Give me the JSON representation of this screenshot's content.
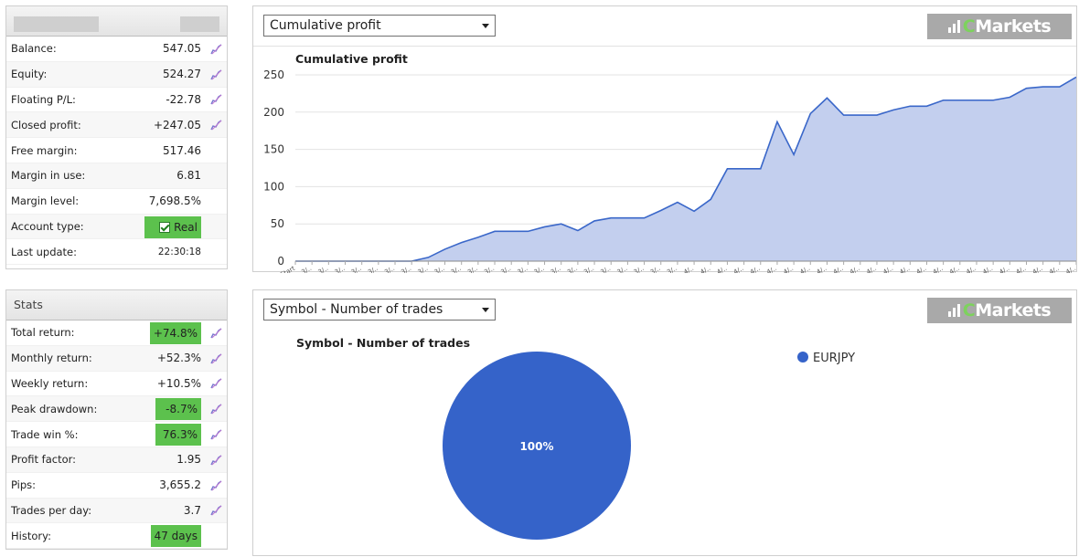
{
  "account": {
    "rows": [
      {
        "label": "Balance:",
        "value": "547.05",
        "icon": true
      },
      {
        "label": "Equity:",
        "value": "524.27",
        "icon": true
      },
      {
        "label": "Floating P/L:",
        "value": "-22.78",
        "icon": true
      },
      {
        "label": "Closed profit:",
        "value": "+247.05",
        "icon": true
      },
      {
        "label": "Free margin:",
        "value": "517.46",
        "icon": false
      },
      {
        "label": "Margin in use:",
        "value": "6.81",
        "icon": false
      },
      {
        "label": "Margin level:",
        "value": "7,698.5%",
        "icon": false
      },
      {
        "label": "Account type:",
        "value": "Real",
        "icon": false
      },
      {
        "label": "Last update:",
        "value": "22:30:18",
        "icon": false
      }
    ]
  },
  "stats": {
    "title": "Stats",
    "rows": [
      {
        "label": "Total return:",
        "value": "+74.8%",
        "highlight": true
      },
      {
        "label": "Monthly return:",
        "value": "+52.3%",
        "highlight": false
      },
      {
        "label": "Weekly return:",
        "value": "+10.5%",
        "highlight": false
      },
      {
        "label": "Peak drawdown:",
        "value": "-8.7%",
        "highlight": true
      },
      {
        "label": "Trade win %:",
        "value": "76.3%",
        "highlight": true
      },
      {
        "label": "Profit factor:",
        "value": "1.95",
        "highlight": false
      },
      {
        "label": "Pips:",
        "value": "3,655.2",
        "highlight": false
      },
      {
        "label": "Trades per day:",
        "value": "3.7",
        "highlight": false
      },
      {
        "label": "History:",
        "value": "47 days",
        "highlight": true
      }
    ]
  },
  "profit_panel": {
    "select_value": "Cumulative profit",
    "logo_text": "Markets"
  },
  "symbol_panel": {
    "select_value": "Symbol - Number of trades",
    "logo_text": "Markets"
  },
  "colors": {
    "highlight": "#5cc14d",
    "series_line": "#3a67c9",
    "series_fill": "#c3cfee",
    "pie": "#3563c9"
  },
  "chart_data": [
    {
      "type": "area",
      "title": "Cumulative profit",
      "ylim": [
        0,
        250
      ],
      "yticks": [
        0,
        50,
        100,
        150,
        200,
        250
      ],
      "first_x_label": "Start",
      "x_tick_labels": [
        "3/..",
        "3/..",
        "3/..",
        "3/..",
        "3/..",
        "3/..",
        "3/..",
        "3/..",
        "3/..",
        "3/..",
        "3/..",
        "3/..",
        "3/..",
        "3/..",
        "3/..",
        "3/..",
        "3/..",
        "3/..",
        "3/..",
        "3/..",
        "3/..",
        "3/..",
        "3/..",
        "4/..",
        "4/..",
        "4/..",
        "4/..",
        "4/..",
        "4/..",
        "4/..",
        "4/..",
        "4/..",
        "4/..",
        "4/..",
        "4/..",
        "4/..",
        "4/..",
        "4/..",
        "4/..",
        "4/..",
        "4/..",
        "4/..",
        "4/..",
        "4/..",
        "4/..",
        "4/..",
        "4/.."
      ],
      "values": [
        0,
        0,
        0,
        0,
        0,
        0,
        0,
        0,
        5,
        16,
        25,
        32,
        40,
        40,
        40,
        46,
        50,
        41,
        54,
        58,
        58,
        58,
        68,
        79,
        67,
        83,
        124,
        124,
        124,
        187,
        143,
        198,
        219,
        196,
        196,
        196,
        203,
        208,
        208,
        216,
        216,
        216,
        216,
        220,
        232,
        234,
        234,
        247
      ]
    },
    {
      "type": "pie",
      "title": "Symbol - Number of trades",
      "labels": [
        "EURJPY"
      ],
      "values": [
        100
      ],
      "slice_labels": [
        "100%"
      ],
      "legend": "top-right"
    }
  ]
}
